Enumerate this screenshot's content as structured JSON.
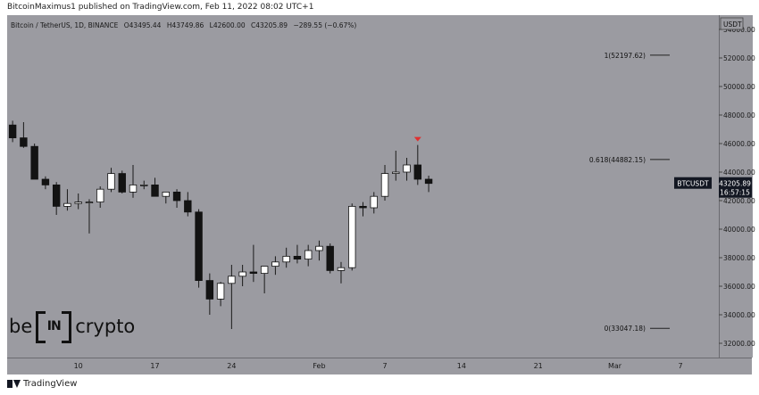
{
  "header": {
    "publisher_text": "BitcoinMaximus1 published on TradingView.com, Feb 11, 2022 08:02 UTC+1"
  },
  "symbol_info": {
    "name": "Bitcoin / TetherUS, 1D, BINANCE",
    "open": "O43495.44",
    "high": "H43749.86",
    "low": "L42600.00",
    "close": "C43205.89",
    "change": "−289.55 (−0.67%)"
  },
  "currency_label": "USDT",
  "price_badge": {
    "symbol": "BTCUSDT",
    "price": "43205.89",
    "countdown": "16:57:15",
    "color": "#131722"
  },
  "fib_levels": [
    {
      "label": "1(52197.62)",
      "value": 52197.62
    },
    {
      "label": "0.618(44882.15)",
      "value": 44882.15
    },
    {
      "label": "0(33047.18)",
      "value": 33047.18
    }
  ],
  "marker": {
    "type": "arrow-down",
    "color": "#e03030",
    "date_index": 32
  },
  "logo": {
    "left": "be",
    "center": "IN",
    "right": "crypto"
  },
  "footer": {
    "brand": "TradingView"
  },
  "colors": {
    "background": "#9b9ba1",
    "up_candle": "#ffffff",
    "down_candle": "#131313",
    "wick": "#1a1a1a"
  },
  "chart_data": {
    "type": "candlestick",
    "title": "Bitcoin / TetherUS, 1D, BINANCE",
    "ylim": [
      31000,
      55000
    ],
    "y_ticks": [
      {
        "value": 32000,
        "label": "32000.00"
      },
      {
        "value": 34000,
        "label": "34000.00"
      },
      {
        "value": 36000,
        "label": "36000.00"
      },
      {
        "value": 38000,
        "label": "38000.00"
      },
      {
        "value": 40000,
        "label": "40000.00"
      },
      {
        "value": 42000,
        "label": "42000.00"
      },
      {
        "value": 44000,
        "label": "44000.00"
      },
      {
        "value": 46000,
        "label": "46000.00"
      },
      {
        "value": 48000,
        "label": "48000.00"
      },
      {
        "value": 50000,
        "label": "50000.00"
      },
      {
        "value": 52000,
        "label": "52000.00"
      },
      {
        "value": 54000,
        "label": "54000.00"
      }
    ],
    "x_ticks": [
      {
        "date_index": 6,
        "label": "10"
      },
      {
        "date_index": 13,
        "label": "17"
      },
      {
        "date_index": 20,
        "label": "24"
      },
      {
        "date_index": 28,
        "label": "Feb"
      },
      {
        "date_index": 34,
        "label": "7"
      },
      {
        "date_index": 41,
        "label": "14"
      },
      {
        "date_index": 48,
        "label": "21"
      },
      {
        "date_index": 55,
        "label": "Mar"
      },
      {
        "date_index": 61,
        "label": "7"
      }
    ],
    "x_range": [
      -0.5,
      64.5
    ],
    "candles": [
      {
        "o": 47300,
        "h": 47600,
        "l": 46100,
        "c": 46400
      },
      {
        "o": 46400,
        "h": 47500,
        "l": 45700,
        "c": 45800
      },
      {
        "o": 45800,
        "h": 46000,
        "l": 43500,
        "c": 43500
      },
      {
        "o": 43500,
        "h": 43700,
        "l": 42800,
        "c": 43100
      },
      {
        "o": 43100,
        "h": 43300,
        "l": 41000,
        "c": 41600
      },
      {
        "o": 41600,
        "h": 42800,
        "l": 41300,
        "c": 41800
      },
      {
        "o": 41800,
        "h": 42500,
        "l": 41400,
        "c": 41900
      },
      {
        "o": 41900,
        "h": 42100,
        "l": 39700,
        "c": 41900
      },
      {
        "o": 41900,
        "h": 43000,
        "l": 41500,
        "c": 42800
      },
      {
        "o": 42800,
        "h": 44300,
        "l": 42600,
        "c": 43900
      },
      {
        "o": 43900,
        "h": 44100,
        "l": 42500,
        "c": 42600
      },
      {
        "o": 42600,
        "h": 44500,
        "l": 42200,
        "c": 43100
      },
      {
        "o": 43100,
        "h": 43400,
        "l": 42800,
        "c": 43100
      },
      {
        "o": 43100,
        "h": 43600,
        "l": 42300,
        "c": 42300
      },
      {
        "o": 42300,
        "h": 42600,
        "l": 41800,
        "c": 42600
      },
      {
        "o": 42600,
        "h": 42800,
        "l": 41500,
        "c": 42000
      },
      {
        "o": 42000,
        "h": 42600,
        "l": 40900,
        "c": 41200
      },
      {
        "o": 41200,
        "h": 41400,
        "l": 35900,
        "c": 36400
      },
      {
        "o": 36400,
        "h": 36900,
        "l": 34000,
        "c": 35100
      },
      {
        "o": 35100,
        "h": 36300,
        "l": 34600,
        "c": 36200
      },
      {
        "o": 36200,
        "h": 37500,
        "l": 33000,
        "c": 36700
      },
      {
        "o": 36700,
        "h": 37500,
        "l": 36000,
        "c": 37000
      },
      {
        "o": 37000,
        "h": 38900,
        "l": 36300,
        "c": 36900
      },
      {
        "o": 36900,
        "h": 37300,
        "l": 35500,
        "c": 37400
      },
      {
        "o": 37400,
        "h": 38100,
        "l": 36800,
        "c": 37700
      },
      {
        "o": 37700,
        "h": 38700,
        "l": 37300,
        "c": 38100
      },
      {
        "o": 38100,
        "h": 38900,
        "l": 37600,
        "c": 37900
      },
      {
        "o": 37900,
        "h": 38900,
        "l": 37400,
        "c": 38500
      },
      {
        "o": 38500,
        "h": 39200,
        "l": 37800,
        "c": 38800
      },
      {
        "o": 38800,
        "h": 39000,
        "l": 36900,
        "c": 37100
      },
      {
        "o": 37100,
        "h": 37700,
        "l": 36200,
        "c": 37300
      },
      {
        "o": 37300,
        "h": 41800,
        "l": 37100,
        "c": 41600
      },
      {
        "o": 41600,
        "h": 41900,
        "l": 40900,
        "c": 41500
      },
      {
        "o": 41500,
        "h": 42600,
        "l": 41100,
        "c": 42300
      },
      {
        "o": 42300,
        "h": 44500,
        "l": 42000,
        "c": 43900
      },
      {
        "o": 43900,
        "h": 45500,
        "l": 43400,
        "c": 44000
      },
      {
        "o": 44000,
        "h": 45000,
        "l": 43400,
        "c": 44500
      },
      {
        "o": 44500,
        "h": 45900,
        "l": 43100,
        "c": 43500
      },
      {
        "o": 43500,
        "h": 43749.86,
        "l": 42600,
        "c": 43205.89
      }
    ]
  }
}
